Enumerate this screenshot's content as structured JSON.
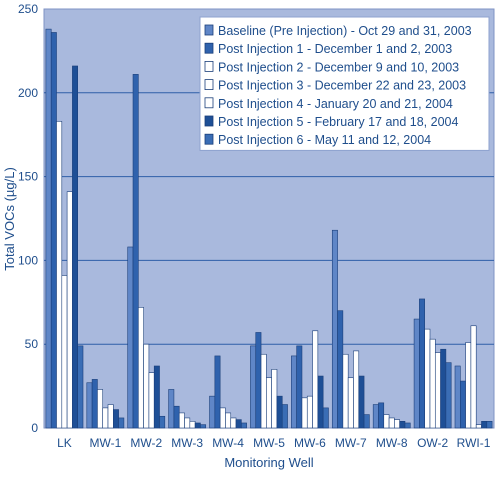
{
  "chart_data": {
    "type": "bar",
    "xlabel": "Monitoring Well",
    "ylabel": "Total VOCs (µg/L)",
    "ylim": [
      0,
      250
    ],
    "yticks": [
      0,
      50,
      100,
      150,
      200,
      250
    ],
    "grid": true,
    "legend_position": "top-right",
    "categories": [
      "LK",
      "MW-1",
      "MW-2",
      "MW-3",
      "MW-4",
      "MW-5",
      "MW-6",
      "MW-7",
      "MW-8",
      "OW-2",
      "RWI-1"
    ],
    "series": [
      {
        "name": "Baseline (Pre Injection) - Oct 29 and 31, 2003",
        "color": "#5f86c7",
        "values": [
          238,
          27,
          108,
          23,
          19,
          49,
          43,
          118,
          14,
          65,
          37
        ]
      },
      {
        "name": "Post Injection 1 - December 1 and 2, 2003",
        "color": "#2f62ad",
        "values": [
          236,
          29,
          211,
          13,
          43,
          57,
          49,
          70,
          15,
          77,
          28
        ]
      },
      {
        "name": "Post Injection 2 - December 9 and 10, 2003",
        "color": "#ffffff",
        "values": [
          183,
          23,
          72,
          9,
          12,
          44,
          18,
          44,
          8,
          59,
          51
        ]
      },
      {
        "name": "Post Injection 3 - December 22 and 23, 2003",
        "color": "#ffffff",
        "values": [
          91,
          12,
          50,
          6,
          9,
          30,
          19,
          30,
          6,
          53,
          61
        ]
      },
      {
        "name": "Post Injection 4 - January 20 and 21, 2004",
        "color": "#ffffff",
        "values": [
          141,
          14,
          33,
          4,
          6,
          35,
          58,
          46,
          5,
          45,
          2
        ]
      },
      {
        "name": "Post Injection 5 - February 17 and 18, 2004",
        "color": "#1e4f96",
        "values": [
          216,
          11,
          37,
          3,
          5,
          19,
          31,
          31,
          4,
          47,
          4
        ]
      },
      {
        "name": "Post Injection 6 - May 11 and 12, 2004",
        "color": "#3a6db5",
        "values": [
          49,
          6,
          7,
          2,
          3,
          14,
          12,
          8,
          3,
          39,
          4
        ]
      }
    ]
  }
}
